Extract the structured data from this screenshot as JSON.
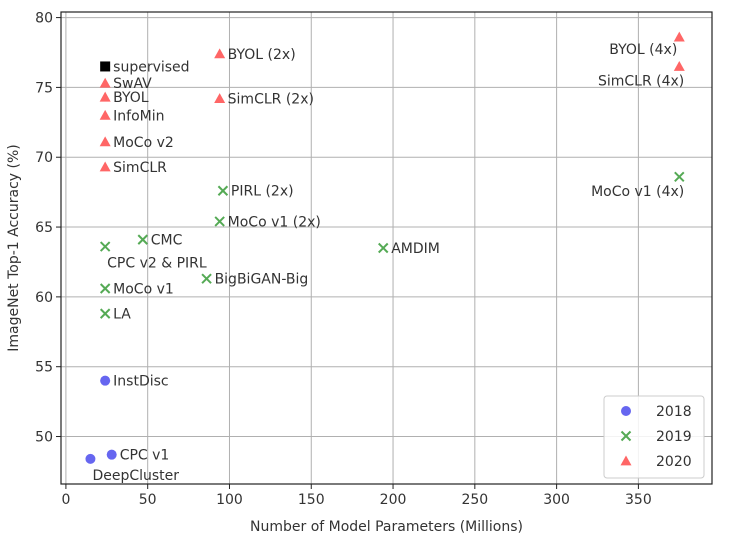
{
  "chart_data": {
    "type": "scatter",
    "title": "",
    "xlabel": "Number of Model Parameters (Millions)",
    "ylabel": "ImageNet Top-1 Accuracy (%)",
    "xlim": [
      -3,
      395
    ],
    "ylim": [
      46.6,
      80.4
    ],
    "xticks": [
      0,
      50,
      100,
      150,
      200,
      250,
      300,
      350
    ],
    "yticks": [
      50,
      55,
      60,
      65,
      70,
      75,
      80
    ],
    "grid": true,
    "legend_position": "bottom-right",
    "series": [
      {
        "name": "2018",
        "marker": "circle",
        "color": "#5555ee",
        "points": [
          {
            "label": "InstDisc",
            "x": 24,
            "y": 54.0,
            "label_side": "right"
          },
          {
            "label": "CPC v1",
            "x": 28,
            "y": 48.7,
            "label_side": "right"
          },
          {
            "label": "DeepCluster",
            "x": 15,
            "y": 48.4,
            "label_side": "below-right"
          }
        ]
      },
      {
        "name": "2019",
        "marker": "x",
        "color": "#55aa55",
        "points": [
          {
            "label": "CMC",
            "x": 47,
            "y": 64.1,
            "label_side": "right"
          },
          {
            "label": "CPC v2 & PIRL",
            "x": 24,
            "y": 63.6,
            "label_side": "below-right"
          },
          {
            "label": "MoCo v1",
            "x": 24,
            "y": 60.6,
            "label_side": "right"
          },
          {
            "label": "LA",
            "x": 24,
            "y": 58.8,
            "label_side": "right"
          },
          {
            "label": "BigBiGAN-Big",
            "x": 86,
            "y": 61.3,
            "label_side": "right"
          },
          {
            "label": "PIRL (2x)",
            "x": 96,
            "y": 67.6,
            "label_side": "right"
          },
          {
            "label": "MoCo v1 (2x)",
            "x": 94,
            "y": 65.4,
            "label_side": "right"
          },
          {
            "label": "AMDIM",
            "x": 194,
            "y": 63.5,
            "label_side": "right"
          },
          {
            "label": "MoCo v1 (4x)",
            "x": 375,
            "y": 68.6,
            "label_side": "below-left"
          }
        ]
      },
      {
        "name": "2020",
        "marker": "triangle",
        "color": "#ff5555",
        "points": [
          {
            "label": "SwAV",
            "x": 24,
            "y": 75.3,
            "label_side": "right"
          },
          {
            "label": "BYOL",
            "x": 24,
            "y": 74.3,
            "label_side": "right"
          },
          {
            "label": "InfoMin",
            "x": 24,
            "y": 73.0,
            "label_side": "right"
          },
          {
            "label": "MoCo v2",
            "x": 24,
            "y": 71.1,
            "label_side": "right"
          },
          {
            "label": "SimCLR",
            "x": 24,
            "y": 69.3,
            "label_side": "right"
          },
          {
            "label": "BYOL (2x)",
            "x": 94,
            "y": 77.4,
            "label_side": "right"
          },
          {
            "label": "SimCLR (2x)",
            "x": 94,
            "y": 74.2,
            "label_side": "right"
          },
          {
            "label": "BYOL (4x)",
            "x": 375,
            "y": 78.6,
            "label_side": "left"
          },
          {
            "label": "SimCLR (4x)",
            "x": 375,
            "y": 76.5,
            "label_side": "below-left"
          }
        ]
      },
      {
        "name": "",
        "marker": "square",
        "color": "#000000",
        "in_legend": false,
        "points": [
          {
            "label": "supervised",
            "x": 24,
            "y": 76.5,
            "label_side": "right"
          }
        ]
      }
    ]
  }
}
